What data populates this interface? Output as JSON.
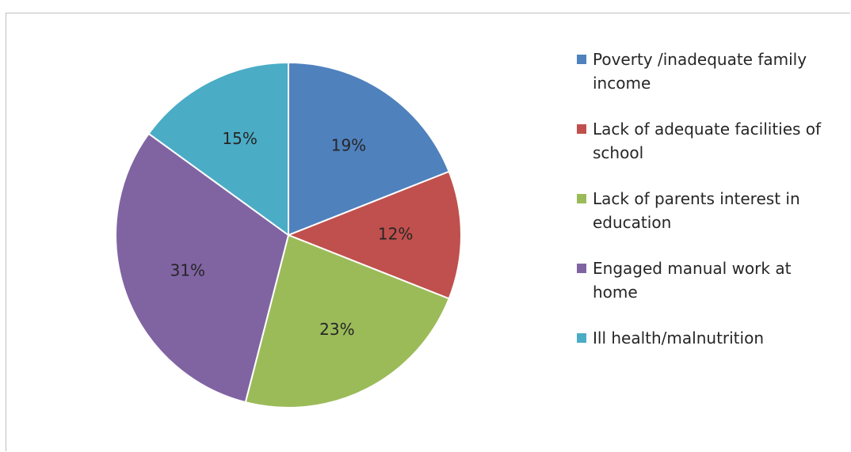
{
  "chart_data": {
    "type": "pie",
    "title": "",
    "categories": [
      "Poverty /inadequate family income",
      "Lack of adequate facilities of school",
      "Lack of parents interest in education",
      "Engaged manual work at home",
      "Ill health/malnutrition"
    ],
    "values": [
      19,
      12,
      23,
      31,
      15
    ],
    "data_labels": [
      "19%",
      "12%",
      "23%",
      "31%",
      "15%"
    ],
    "colors": [
      "#4F81BD",
      "#C0504D",
      "#9BBB59",
      "#8064A2",
      "#4BACC6"
    ],
    "legend_position": "right",
    "start_angle": "12 o'clock",
    "direction": "clockwise"
  },
  "legend": {
    "items": [
      {
        "label": "Poverty /inadequate family income",
        "line1": "Poverty /inadequate family",
        "line2": "income"
      },
      {
        "label": "Lack of adequate facilities of school",
        "line1": "Lack of adequate facilities of",
        "line2": "school"
      },
      {
        "label": "Lack of parents interest in education",
        "line1": "Lack of parents interest in",
        "line2": "education"
      },
      {
        "label": "Engaged manual work at home",
        "line1": "Engaged manual work at",
        "line2": "home"
      },
      {
        "label": "Ill health/malnutrition",
        "line1": "Ill health/malnutrition",
        "line2": ""
      }
    ]
  }
}
